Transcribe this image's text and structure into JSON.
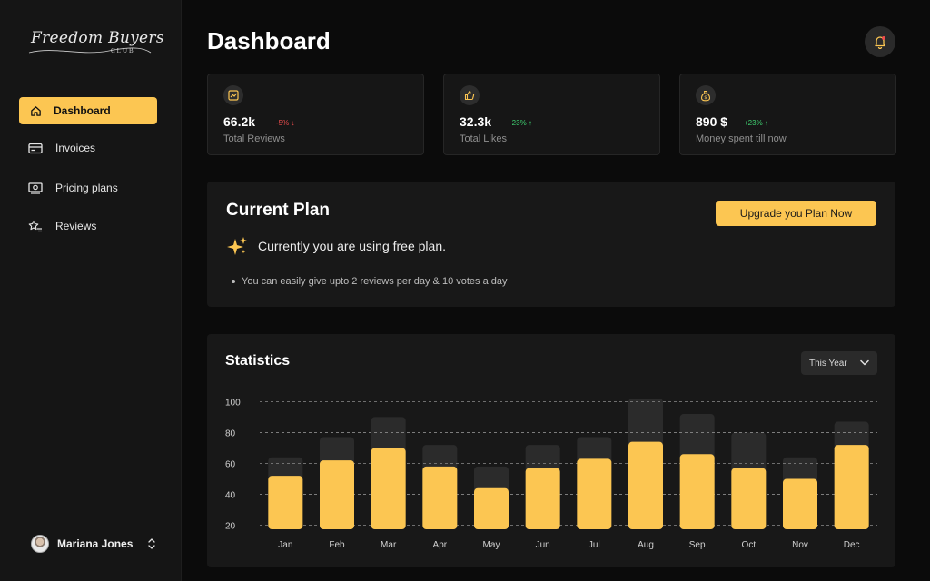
{
  "brand": {
    "name": "Freedom Buyers",
    "sub": "CLUB"
  },
  "sidebar": {
    "items": [
      {
        "label": "Dashboard",
        "icon": "home-icon",
        "active": true
      },
      {
        "label": "Invoices",
        "icon": "card-icon"
      },
      {
        "label": "Pricing plans",
        "icon": "money-icon"
      },
      {
        "label": "Reviews",
        "icon": "star-list-icon"
      }
    ],
    "user": {
      "name": "Mariana Jones"
    }
  },
  "header": {
    "title": "Dashboard"
  },
  "stats_cards": [
    {
      "value": "66.2k",
      "change": "-5% ↓",
      "trend": "down",
      "label": "Total Reviews",
      "icon": "chart-icon"
    },
    {
      "value": "32.3k",
      "change": "+23% ↑",
      "trend": "up",
      "label": "Total Likes",
      "icon": "thumbs-up-icon"
    },
    {
      "value": "890 $",
      "change": "+23% ↑",
      "trend": "up",
      "label": "Money spent till now",
      "icon": "money-bag-icon"
    }
  ],
  "plan": {
    "title": "Current Plan",
    "upgrade_label": "Upgrade you Plan Now",
    "status": "Currently you are using free plan.",
    "note": "You can easily give upto 2 reviews per day & 10 votes a day"
  },
  "statistics": {
    "title": "Statistics",
    "range": "This Year"
  },
  "colors": {
    "accent": "#fcc652",
    "bg": "#0b0b0b",
    "panel": "#181818",
    "up": "#3fd171",
    "down": "#ef4d4d"
  },
  "chart_data": {
    "type": "bar",
    "categories": [
      "Jan",
      "Feb",
      "Mar",
      "Apr",
      "May",
      "Jun",
      "Jul",
      "Aug",
      "Sep",
      "Oct",
      "Nov",
      "Dec"
    ],
    "series": [
      {
        "values": [
          52,
          62,
          70,
          58,
          44,
          57,
          63,
          74,
          66,
          57,
          50,
          72
        ]
      },
      {
        "values": [
          64,
          77,
          90,
          72,
          58,
          72,
          77,
          102,
          92,
          80,
          64,
          87
        ]
      }
    ],
    "yticks": [
      20,
      40,
      60,
      80,
      100
    ],
    "ylim": [
      18,
      102
    ],
    "grid": true
  }
}
